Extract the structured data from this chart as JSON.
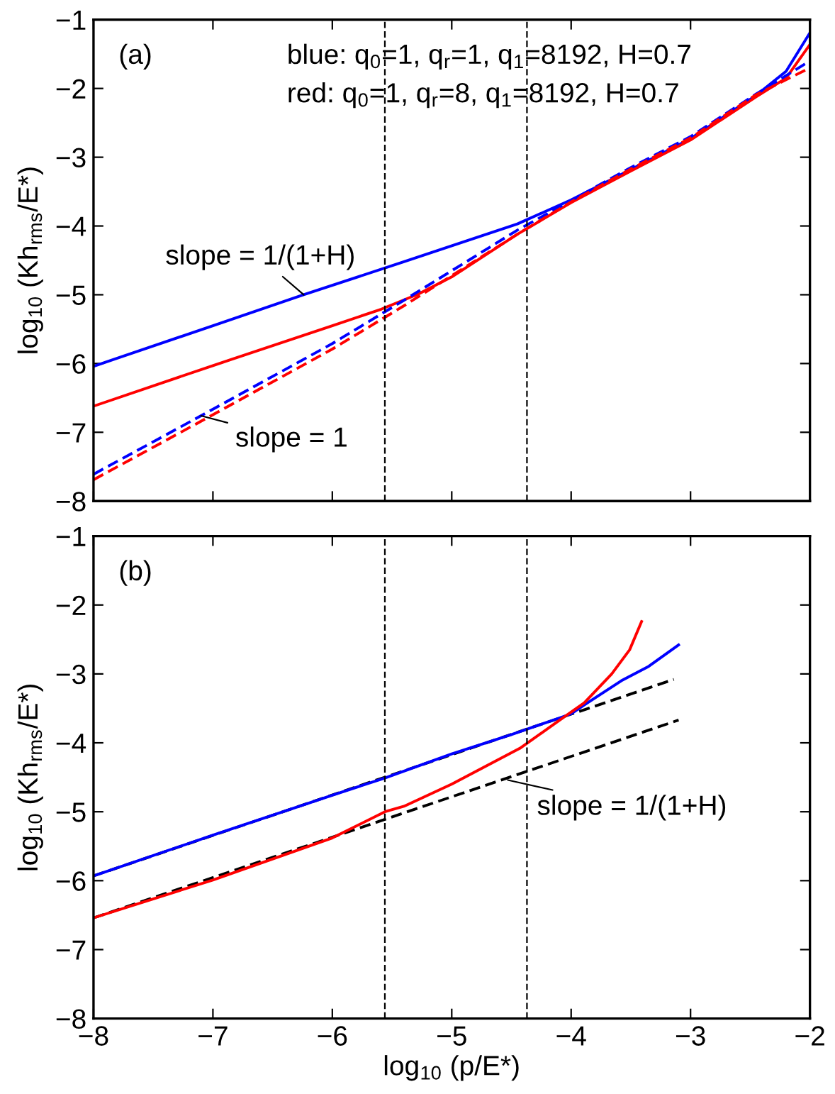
{
  "chart_data": [
    {
      "type": "line",
      "ylabel": "log$_{10}$ (Kh$_{rms}$/E*)",
      "xlim": [
        -8,
        -2
      ],
      "ylim": [
        -8,
        -1
      ],
      "xticks": [
        -8,
        -7,
        -6,
        -5,
        -4,
        -3,
        -2
      ],
      "yticks": [
        -8,
        -7,
        -6,
        -5,
        -4,
        -3,
        -2,
        -1
      ],
      "tick_labels": "y",
      "annotations": [
        "(a)",
        "blue: q$_{0}$=1, q$_{r}$=1, q$_{1}$=8192, H=0.7",
        "red: q$_{0}$=1, q$_{r}$=8, q$_{1}$=8192, H=0.7",
        {
          "text": "slope = 1/(1+H)",
          "x": -6.24,
          "y": -5.0
        },
        {
          "text": "slope = 1",
          "x": -7.1,
          "y": -6.76
        }
      ],
      "ref_lines": [
        {
          "axis": "x",
          "value": -5.56,
          "color": "#000000",
          "line_style": "dashed"
        },
        {
          "axis": "x",
          "value": -4.37,
          "color": "#000000",
          "line_style": "dashed"
        }
      ],
      "series": [
        {
          "color": "#0000ff",
          "line_style": "solid",
          "x": [
            -8,
            -7,
            -6.24,
            -5.4,
            -4.45,
            -4,
            -3.5,
            -3,
            -2.45,
            -2.2,
            -2
          ],
          "values": [
            -6.04,
            -5.45,
            -5.0,
            -4.52,
            -3.97,
            -3.62,
            -3.18,
            -2.73,
            -2.1,
            -1.75,
            -1.19
          ]
        },
        {
          "color": "#ff0000",
          "line_style": "solid",
          "x": [
            -8,
            -7,
            -6,
            -5.59,
            -5.28,
            -5,
            -4.45,
            -4,
            -3.5,
            -3,
            -2.45,
            -2.2,
            -2
          ],
          "values": [
            -6.62,
            -6.03,
            -5.45,
            -5.21,
            -4.99,
            -4.74,
            -4.12,
            -3.66,
            -3.2,
            -2.75,
            -2.12,
            -1.85,
            -1.36
          ]
        },
        {
          "color": "#0000ff",
          "line_style": "dashed",
          "x": [
            -8,
            -7.1,
            -6,
            -5.4,
            -4.45,
            -4,
            -3.5,
            -3,
            -2.45,
            -2
          ],
          "values": [
            -7.61,
            -6.76,
            -5.71,
            -5.08,
            -4.06,
            -3.63,
            -3.15,
            -2.7,
            -2.08,
            -1.6
          ]
        },
        {
          "color": "#ff0000",
          "line_style": "dashed",
          "x": [
            -8,
            -7.1,
            -6,
            -5.4,
            -4.45,
            -4,
            -3.5,
            -3,
            -2.45,
            -2
          ],
          "values": [
            -7.69,
            -6.84,
            -5.79,
            -5.16,
            -4.12,
            -3.65,
            -3.17,
            -2.72,
            -2.09,
            -1.7
          ]
        }
      ]
    },
    {
      "type": "line",
      "xlabel": "log$_{10}$ (p/E*)",
      "ylabel": "log$_{10}$ (Kh$_{rms}$/E*)",
      "xlim": [
        -8,
        -2
      ],
      "ylim": [
        -8,
        -1
      ],
      "xticks": [
        -8,
        -7,
        -6,
        -5,
        -4,
        -3,
        -2
      ],
      "yticks": [
        -8,
        -7,
        -6,
        -5,
        -4,
        -3,
        -2,
        -1
      ],
      "annotations": [
        "(b)",
        {
          "text": "slope = 1/(1+H)",
          "x": -4.53,
          "y": -4.54
        }
      ],
      "ref_lines": [
        {
          "axis": "x",
          "value": -5.56,
          "color": "#000000",
          "line_style": "dashed"
        },
        {
          "axis": "x",
          "value": -4.37,
          "color": "#000000",
          "line_style": "dashed"
        }
      ],
      "series": [
        {
          "color": "#000000",
          "line_style": "dashed",
          "x": [
            -8,
            -3.14
          ],
          "values": [
            -5.93,
            -3.08
          ]
        },
        {
          "color": "#000000",
          "line_style": "dashed",
          "x": [
            -8,
            -3.1
          ],
          "values": [
            -6.54,
            -3.67
          ]
        },
        {
          "color": "#0000ff",
          "line_style": "solid",
          "x": [
            -8,
            -7,
            -6,
            -5.56,
            -5,
            -4.5,
            -4,
            -3.89,
            -3.58,
            -3.35,
            -3.1
          ],
          "values": [
            -5.93,
            -5.34,
            -4.76,
            -4.51,
            -4.16,
            -3.88,
            -3.58,
            -3.45,
            -3.1,
            -2.89,
            -2.58
          ]
        },
        {
          "color": "#ff0000",
          "line_style": "solid",
          "x": [
            -8,
            -7,
            -6,
            -5.56,
            -5.4,
            -5,
            -4.43,
            -4.12,
            -3.89,
            -3.66,
            -3.51,
            -3.41
          ],
          "values": [
            -6.54,
            -5.99,
            -5.38,
            -5.0,
            -4.92,
            -4.6,
            -4.08,
            -3.7,
            -3.42,
            -3.0,
            -2.65,
            -2.24
          ]
        }
      ]
    }
  ]
}
